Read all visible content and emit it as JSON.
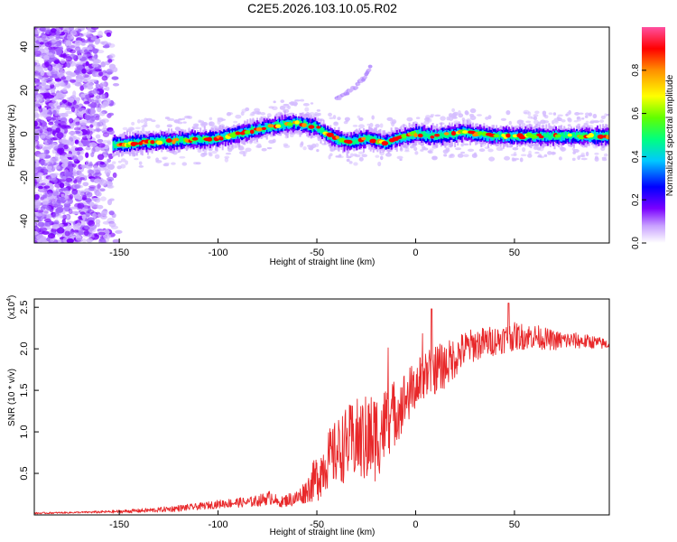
{
  "figure": {
    "title": "C2E5.2026.103.10.05.R02"
  },
  "chart_data": [
    {
      "type": "heatmap",
      "title": "C2E5.2026.103.10.05.R02",
      "xlabel": "Height of straight line (km)",
      "ylabel": "Frequency (Hz)",
      "xlim": [
        -193,
        98
      ],
      "ylim": [
        -50,
        49
      ],
      "xticks": [
        -150,
        -100,
        -50,
        0,
        50
      ],
      "yticks": [
        -40,
        -20,
        0,
        20,
        40
      ],
      "colorbar": {
        "label": "Normalized spectral amplitude",
        "range": [
          0,
          1
        ],
        "ticks": [
          "0.0",
          "0.2",
          "0.4",
          "0.6",
          "0.8"
        ],
        "colors": [
          "#ffffff",
          "#c8a0ff",
          "#7a00ff",
          "#0000ff",
          "#00c8ff",
          "#00ff80",
          "#60ff00",
          "#ffff00",
          "#ff9000",
          "#ff0000",
          "#ff50a0"
        ]
      },
      "ridge_centerline_hz": {
        "x": [
          -152,
          -140,
          -120,
          -100,
          -90,
          -80,
          -70,
          -60,
          -50,
          -45,
          -40,
          -35,
          -30,
          -25,
          -20,
          -15,
          -10,
          0,
          10,
          20,
          25,
          30,
          40,
          60,
          80,
          98
        ],
        "y": [
          -5,
          -4,
          -3,
          -2,
          0,
          2,
          4,
          5,
          3,
          0,
          -2,
          -4,
          -3,
          -2,
          -3,
          -4,
          -2,
          0,
          -1,
          0,
          1,
          0,
          -1,
          -1,
          -1,
          -1
        ]
      },
      "branch_hz": {
        "x": [
          -40,
          -35,
          -30,
          -25,
          -23
        ],
        "y": [
          16,
          19,
          22,
          27,
          31
        ]
      }
    },
    {
      "type": "line",
      "xlabel": "Height of straight line (km)",
      "ylabel": "SNR (10 * v/v)",
      "scale_label": "(x10",
      "scale_exp": "4",
      "xlim": [
        -193,
        98
      ],
      "ylim": [
        0,
        2.6
      ],
      "xticks": [
        -150,
        -100,
        -50,
        0,
        50
      ],
      "yticks": [
        0.5,
        1.0,
        1.5,
        2.0,
        2.5
      ],
      "ytick_labels": [
        "0.5",
        "1.0",
        "1.5",
        "2.0",
        "2.5"
      ],
      "color": "#e8282a",
      "series": [
        {
          "name": "SNR",
          "x": [
            -193,
            -170,
            -150,
            -130,
            -120,
            -110,
            -100,
            -90,
            -85,
            -80,
            -75,
            -72,
            -70,
            -65,
            -60,
            -55,
            -50,
            -45,
            -40,
            -35,
            -30,
            -25,
            -20,
            -15,
            -10,
            -5,
            0,
            5,
            10,
            15,
            20,
            25,
            30,
            40,
            50,
            60,
            70,
            80,
            90,
            98
          ],
          "y": [
            0.02,
            0.03,
            0.04,
            0.06,
            0.08,
            0.1,
            0.13,
            0.15,
            0.15,
            0.17,
            0.2,
            0.22,
            0.14,
            0.18,
            0.2,
            0.3,
            0.45,
            0.65,
            0.75,
            0.85,
            0.9,
            0.9,
            0.95,
            1.1,
            1.25,
            1.4,
            1.55,
            1.7,
            1.75,
            1.8,
            1.9,
            2.0,
            2.05,
            2.1,
            2.15,
            2.15,
            2.1,
            2.1,
            2.08,
            2.05
          ],
          "amplitude": [
            0.01,
            0.01,
            0.02,
            0.03,
            0.04,
            0.04,
            0.05,
            0.06,
            0.06,
            0.07,
            0.08,
            0.1,
            0.05,
            0.08,
            0.1,
            0.15,
            0.3,
            0.35,
            0.4,
            0.45,
            0.5,
            0.55,
            0.55,
            0.45,
            0.4,
            0.35,
            0.3,
            0.3,
            0.3,
            0.28,
            0.25,
            0.22,
            0.2,
            0.18,
            0.17,
            0.15,
            0.12,
            0.1,
            0.08,
            0.06
          ]
        }
      ]
    }
  ]
}
